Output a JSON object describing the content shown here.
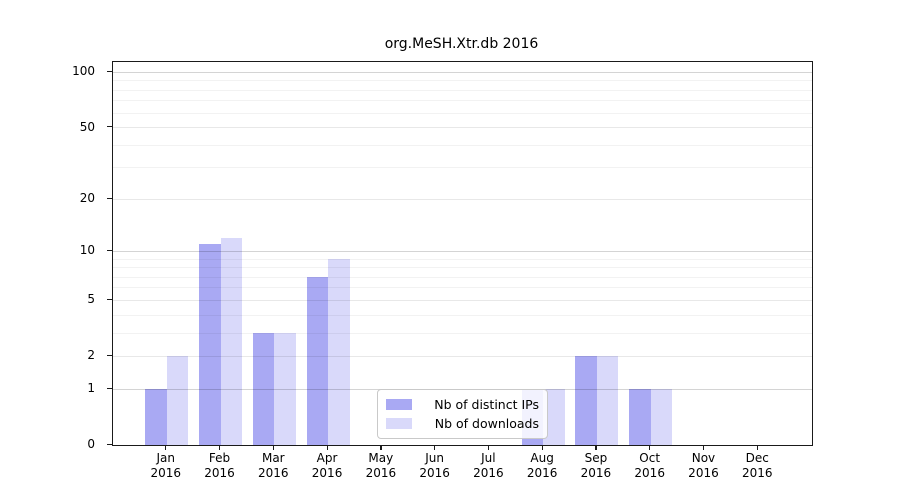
{
  "title": "org.MeSH.Xtr.db 2016",
  "chart_data": {
    "type": "bar",
    "title": "org.MeSH.Xtr.db 2016",
    "categories": [
      {
        "month": "Jan",
        "year": "2016"
      },
      {
        "month": "Feb",
        "year": "2016"
      },
      {
        "month": "Mar",
        "year": "2016"
      },
      {
        "month": "Apr",
        "year": "2016"
      },
      {
        "month": "May",
        "year": "2016"
      },
      {
        "month": "Jun",
        "year": "2016"
      },
      {
        "month": "Jul",
        "year": "2016"
      },
      {
        "month": "Aug",
        "year": "2016"
      },
      {
        "month": "Sep",
        "year": "2016"
      },
      {
        "month": "Oct",
        "year": "2016"
      },
      {
        "month": "Nov",
        "year": "2016"
      },
      {
        "month": "Dec",
        "year": "2016"
      }
    ],
    "series": [
      {
        "name": "Nb of distinct IPs",
        "color": "#a9a9f3",
        "values": [
          1,
          11,
          3,
          7,
          0,
          0,
          0,
          1,
          2,
          1,
          0,
          0
        ]
      },
      {
        "name": "Nb of downloads",
        "color": "#d9d9fa",
        "values": [
          2,
          12,
          3,
          9,
          0,
          0,
          0,
          1,
          2,
          1,
          0,
          0
        ]
      }
    ],
    "xlabel": "",
    "ylabel": "",
    "y_ticks": [
      0,
      1,
      2,
      5,
      10,
      20,
      50,
      100
    ],
    "y_major_gridlines": [
      1,
      10,
      100
    ],
    "y_mid_gridlines": [
      2,
      5,
      20,
      50
    ],
    "y_minor_gridlines": [
      3,
      4,
      6,
      7,
      8,
      9,
      30,
      40,
      60,
      70,
      80,
      90
    ],
    "y_scale": "log10(value+1)",
    "y_axis_max": 114,
    "ylim": [
      0,
      114
    ],
    "grid": "horizontal",
    "legend_position": "inside-bottom-center"
  },
  "legend": {
    "items": [
      {
        "label": "Nb of distinct IPs",
        "color": "#a9a9f3"
      },
      {
        "label": "Nb of downloads",
        "color": "#d9d9fa"
      }
    ]
  }
}
